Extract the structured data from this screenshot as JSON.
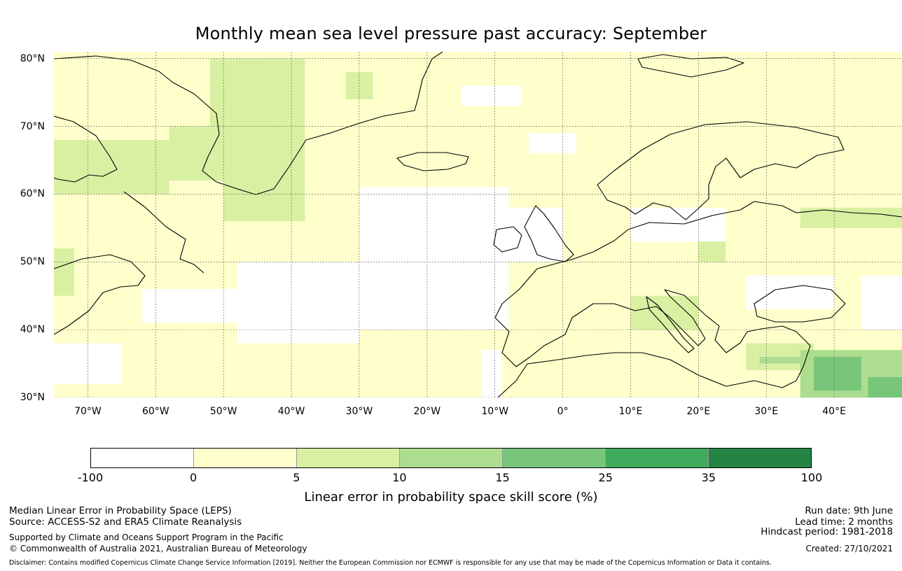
{
  "title": "Monthly mean sea level pressure past accuracy: September",
  "map": {
    "extent": {
      "lon_min": -75,
      "lon_max": 50,
      "lat_min": 30,
      "lat_max": 81
    },
    "lat_ticks": [
      {
        "value": 80,
        "label": "80°N"
      },
      {
        "value": 70,
        "label": "70°N"
      },
      {
        "value": 60,
        "label": "60°N"
      },
      {
        "value": 50,
        "label": "50°N"
      },
      {
        "value": 40,
        "label": "40°N"
      },
      {
        "value": 30,
        "label": "30°N"
      }
    ],
    "lon_ticks": [
      {
        "value": -70,
        "label": "70°W"
      },
      {
        "value": -60,
        "label": "60°W"
      },
      {
        "value": -50,
        "label": "50°W"
      },
      {
        "value": -40,
        "label": "40°W"
      },
      {
        "value": -30,
        "label": "30°W"
      },
      {
        "value": -20,
        "label": "20°W"
      },
      {
        "value": -10,
        "label": "10°W"
      },
      {
        "value": 0,
        "label": "0°"
      },
      {
        "value": 10,
        "label": "10°E"
      },
      {
        "value": 20,
        "label": "20°E"
      },
      {
        "value": 30,
        "label": "30°E"
      },
      {
        "value": 40,
        "label": "40°E"
      }
    ],
    "skill_regions": [
      {
        "class": 1,
        "lon": [
          -75,
          50
        ],
        "lat": [
          30,
          81
        ]
      },
      {
        "class": 0,
        "lon": [
          -30,
          -8
        ],
        "lat": [
          40,
          61
        ]
      },
      {
        "class": 0,
        "lon": [
          -48,
          -30
        ],
        "lat": [
          38,
          50
        ]
      },
      {
        "class": 0,
        "lon": [
          -62,
          -48
        ],
        "lat": [
          41,
          46
        ]
      },
      {
        "class": 0,
        "lon": [
          -8,
          0
        ],
        "lat": [
          50,
          58
        ]
      },
      {
        "class": 0,
        "lon": [
          -75,
          -65
        ],
        "lat": [
          32,
          38
        ]
      },
      {
        "class": 0,
        "lon": [
          -12,
          -9
        ],
        "lat": [
          30,
          37
        ]
      },
      {
        "class": 0,
        "lon": [
          10,
          24
        ],
        "lat": [
          53,
          58
        ]
      },
      {
        "class": 0,
        "lon": [
          27,
          40
        ],
        "lat": [
          43,
          48
        ]
      },
      {
        "class": 0,
        "lon": [
          -15,
          -6
        ],
        "lat": [
          73,
          76
        ]
      },
      {
        "class": 0,
        "lon": [
          -5,
          2
        ],
        "lat": [
          66,
          69
        ]
      },
      {
        "class": 0,
        "lon": [
          44,
          50
        ],
        "lat": [
          40,
          48
        ]
      },
      {
        "class": 2,
        "lon": [
          -52,
          -38
        ],
        "lat": [
          62,
          80
        ]
      },
      {
        "class": 2,
        "lon": [
          -58,
          -52
        ],
        "lat": [
          62,
          70
        ]
      },
      {
        "class": 2,
        "lon": [
          -75,
          -58
        ],
        "lat": [
          60,
          68
        ]
      },
      {
        "class": 2,
        "lon": [
          -50,
          -38
        ],
        "lat": [
          56,
          62
        ]
      },
      {
        "class": 2,
        "lon": [
          -75,
          -72
        ],
        "lat": [
          45,
          52
        ]
      },
      {
        "class": 2,
        "lon": [
          20,
          24
        ],
        "lat": [
          50,
          53
        ]
      },
      {
        "class": 2,
        "lon": [
          10,
          20
        ],
        "lat": [
          40,
          45
        ]
      },
      {
        "class": 2,
        "lon": [
          27,
          37
        ],
        "lat": [
          34,
          38
        ]
      },
      {
        "class": 2,
        "lon": [
          35,
          50
        ],
        "lat": [
          55,
          58
        ]
      },
      {
        "class": 2,
        "lon": [
          -32,
          -28
        ],
        "lat": [
          74,
          78
        ]
      },
      {
        "class": 3,
        "lon": [
          35,
          50
        ],
        "lat": [
          30,
          37
        ]
      },
      {
        "class": 3,
        "lon": [
          29,
          35
        ],
        "lat": [
          35,
          36
        ]
      },
      {
        "class": 4,
        "lon": [
          37,
          44
        ],
        "lat": [
          31,
          36
        ]
      },
      {
        "class": 4,
        "lon": [
          45,
          50
        ],
        "lat": [
          30,
          33
        ]
      }
    ]
  },
  "colorbar": {
    "colors": [
      "#ffffff",
      "#ffffcc",
      "#d9f0a3",
      "#addd8e",
      "#78c679",
      "#41ab5d",
      "#238443"
    ],
    "ticks": [
      "-100",
      "0",
      "5",
      "10",
      "15",
      "25",
      "35",
      "100"
    ],
    "label": "Linear error in probability space skill score (%)"
  },
  "footer": {
    "left_line1": "Median Linear Error in Probability Space (LEPS)",
    "left_line2": "Source: ACCESS-S2 and ERA5 Climate Reanalysis",
    "left_line3": "Supported by Climate and Oceans Support Program in the Pacific",
    "left_line4": "© Commonwealth of Australia 2021, Australian Bureau of Meteorology",
    "right_line1": "Run date: 9th June",
    "right_line2": "Lead time: 2 months",
    "right_line3": "Hindcast period: 1981-2018",
    "right_line4": "Created: 27/10/2021",
    "disclaimer": "Disclaimer: Contains modified Copernicus Climate Change Service Information [2019]. Neither the European Commission nor ECMWF is responsible for any use that may be made of the Copernicus Information or Data it contains."
  }
}
